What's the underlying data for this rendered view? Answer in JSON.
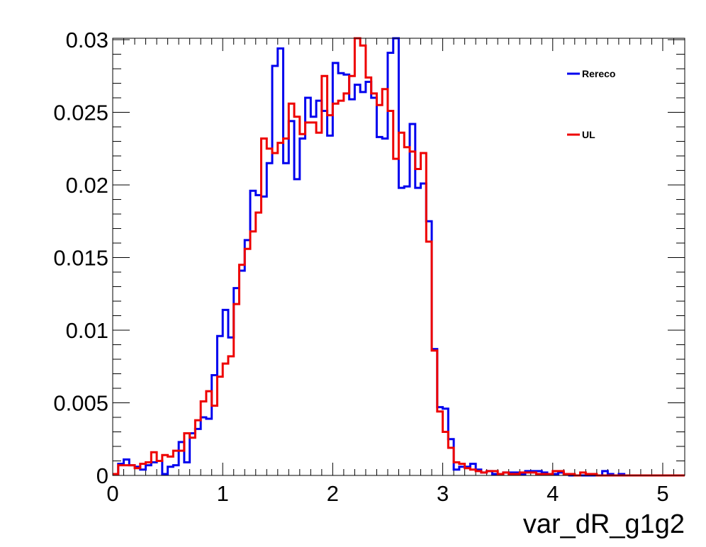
{
  "chart_data": {
    "type": "histogram",
    "xlabel": "var_dR_g1g2",
    "ylabel": "",
    "xlim": [
      0,
      5.2
    ],
    "ylim": [
      0,
      0.0301
    ],
    "bin_width": 0.05,
    "x_ticks": [
      0,
      1,
      2,
      3,
      4,
      5
    ],
    "y_ticks": [
      0,
      0.005,
      0.01,
      0.015,
      0.02,
      0.025,
      0.03
    ],
    "x_tick_labels": [
      "0",
      "1",
      "2",
      "3",
      "4",
      "5"
    ],
    "y_tick_labels": [
      "0",
      "0.005",
      "0.01",
      "0.015",
      "0.02",
      "0.025",
      "0.03"
    ],
    "grid": false,
    "legend_position": "top-right",
    "series": [
      {
        "name": "Rereco",
        "color": "#0000ee",
        "values": [
          0.0001,
          0.0008,
          0.0011,
          0.0007,
          0.0006,
          0.0004,
          0.0007,
          0.0009,
          0.001,
          0.0001,
          0.0006,
          0.0007,
          0.0023,
          0.0009,
          0.0029,
          0.0032,
          0.004,
          0.0039,
          0.0069,
          0.0096,
          0.0114,
          0.0095,
          0.0129,
          0.0141,
          0.0162,
          0.0196,
          0.0193,
          0.0192,
          0.0215,
          0.0282,
          0.0294,
          0.0215,
          0.0244,
          0.0204,
          0.0232,
          0.026,
          0.0247,
          0.0258,
          0.0251,
          0.0234,
          0.0284,
          0.0277,
          0.0276,
          0.0259,
          0.0269,
          0.0264,
          0.0271,
          0.026,
          0.0233,
          0.0232,
          0.0291,
          0.0305,
          0.0198,
          0.0199,
          0.0242,
          0.0198,
          0.0201,
          0.0175,
          0.0087,
          0.0047,
          0.0046,
          0.0025,
          0.0004,
          0.0006,
          0.0006,
          0.0008,
          0.0004,
          0.0002,
          0.0003,
          0.0001,
          0.0001,
          0.0002,
          0.0002,
          0.0002,
          0.0001,
          0.0003,
          0.0003,
          0.0003,
          0.0002,
          0.0001,
          0.0001,
          0.0002,
          0.0001,
          0.0,
          0.0,
          0.0,
          0.0,
          0.0,
          0.0,
          0.0003,
          0.0001,
          0.0,
          0.0001,
          0.0,
          0.0,
          0.0,
          0.0,
          0.0,
          0.0,
          0.0,
          0.0,
          0.0,
          0.0,
          0.0
        ]
      },
      {
        "name": "UL",
        "color": "#ee0000",
        "values": [
          0.0001,
          0.0007,
          0.0007,
          0.0007,
          0.0005,
          0.0008,
          0.0009,
          0.0016,
          0.001,
          0.0014,
          0.0013,
          0.0017,
          0.0017,
          0.0029,
          0.0026,
          0.0038,
          0.0051,
          0.0058,
          0.0048,
          0.0068,
          0.0077,
          0.0082,
          0.0118,
          0.0145,
          0.0156,
          0.0168,
          0.0181,
          0.0232,
          0.0225,
          0.0222,
          0.0229,
          0.0232,
          0.0256,
          0.0247,
          0.0235,
          0.0243,
          0.0243,
          0.0236,
          0.0275,
          0.0248,
          0.0256,
          0.0258,
          0.0263,
          0.0275,
          0.0301,
          0.0296,
          0.0274,
          0.0263,
          0.0255,
          0.0266,
          0.0251,
          0.0218,
          0.0236,
          0.0226,
          0.0223,
          0.0211,
          0.0222,
          0.0161,
          0.0086,
          0.0044,
          0.003,
          0.0019,
          0.0009,
          0.0008,
          0.0005,
          0.0004,
          0.0003,
          0.0002,
          0.0003,
          0.0003,
          0.0001,
          0.0002,
          0.0001,
          0.0001,
          0.0002,
          0.0002,
          0.0002,
          0.0001,
          0.0001,
          0.0001,
          0.0003,
          0.0003,
          0.0001,
          0.0001,
          0.0,
          0.0002,
          0.0001,
          0.0001,
          0.0,
          0.0,
          0.0,
          0.0,
          0.0,
          0.0,
          0.0,
          0.0,
          0.0,
          0.0,
          0.0,
          0.0,
          0.0,
          0.0,
          0.0,
          0.0
        ]
      }
    ]
  }
}
